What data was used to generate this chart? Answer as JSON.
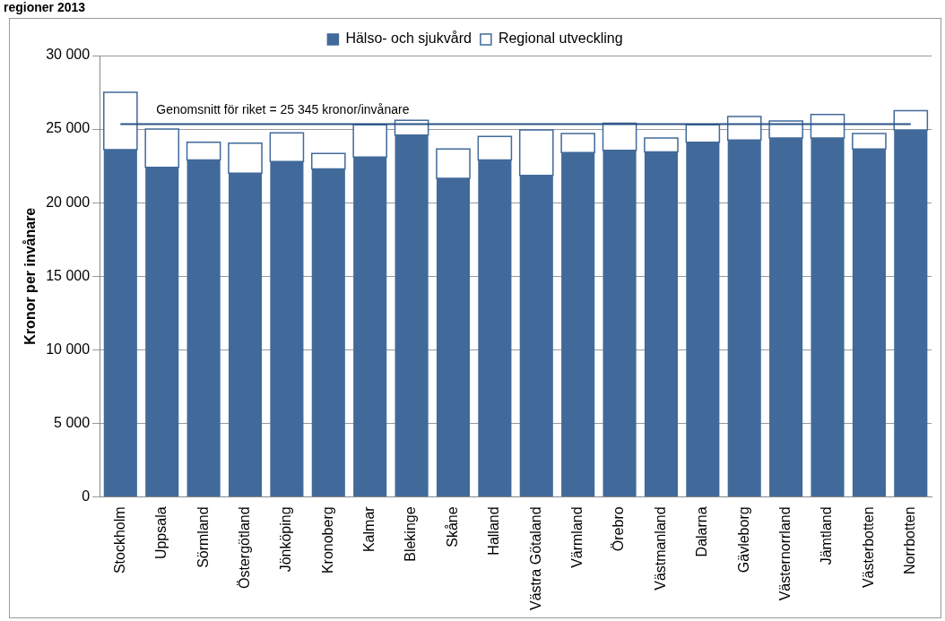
{
  "chart_data": {
    "type": "bar",
    "title": "regioner 2013",
    "ylabel": "Kronor per invånare",
    "categories": [
      "Stockholm",
      "Uppsala",
      "Sörmland",
      "Östergötland",
      "Jönköping",
      "Kronoberg",
      "Kalmar",
      "Blekinge",
      "Skåne",
      "Halland",
      "Västra Götaland",
      "Värmland",
      "Örebro",
      "Västmanland",
      "Dalarna",
      "Gävleborg",
      "Västernorrland",
      "Jämtland",
      "Västerbotten",
      "Norrbotten"
    ],
    "series": [
      {
        "name": "Hälso- och sjukvård",
        "color": "#416a9b",
        "values": [
          23600,
          22400,
          22900,
          22000,
          22800,
          22300,
          23100,
          24600,
          21650,
          22900,
          21850,
          23400,
          23550,
          23450,
          24100,
          24250,
          24400,
          24400,
          23650,
          24950
        ]
      },
      {
        "name": "Regional utveckling",
        "color": "#ffffff",
        "values": [
          3900,
          2600,
          1200,
          2050,
          1950,
          1050,
          2200,
          1000,
          2000,
          1600,
          3100,
          1300,
          1850,
          950,
          1200,
          1600,
          1150,
          1600,
          1050,
          1300
        ]
      }
    ],
    "stacked": true,
    "ylim": [
      0,
      30000
    ],
    "yticks": [
      {
        "value": 0,
        "label": "0"
      },
      {
        "value": 5000,
        "label": "5 000"
      },
      {
        "value": 10000,
        "label": "10 000"
      },
      {
        "value": 15000,
        "label": "15 000"
      },
      {
        "value": 20000,
        "label": "20 000"
      },
      {
        "value": 25000,
        "label": "25 000"
      },
      {
        "value": 30000,
        "label": "30 000"
      }
    ],
    "grid": "y",
    "legend": "top",
    "ref_lines": [
      {
        "axis": "y",
        "value": 25345,
        "label": "Genomsnitt för riket = 25 345 kronor/invånare",
        "color": "#2a5286"
      }
    ]
  }
}
